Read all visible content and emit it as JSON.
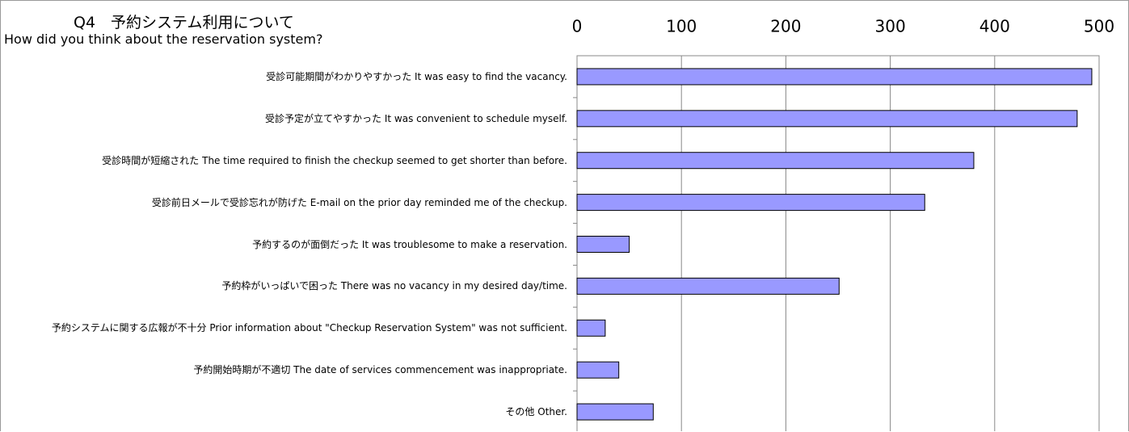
{
  "chart_data": {
    "type": "barh",
    "title": "Q4　予約システム利用について",
    "subtitle": "How did you think about the reservation system?",
    "categories": [
      "受診可能期間がわかりやすかった It was easy to find the vacancy.",
      "受診予定が立てやすかった It was convenient to schedule myself.",
      "受診時間が短縮された The time required to finish the checkup seemed to get shorter than before.",
      "受診前日メールで受診忘れが防げた E-mail on the prior day reminded me of the checkup.",
      "予約するのが面倒だった It was troublesome to make a reservation.",
      "予約枠がいっぱいで困った There was no vacancy in my desired day/time.",
      "予約システムに関する広報が不十分 Prior information about \"Checkup Reservation System\" was not sufficient.",
      "予約開始時期が不適切  The date of services commencement was inappropriate.",
      "その他 Other."
    ],
    "values": [
      493,
      479,
      380,
      333,
      50,
      251,
      27,
      40,
      73
    ],
    "color": "#9999ff",
    "xlim": [
      0,
      500
    ],
    "xticks": [
      0,
      100,
      200,
      300,
      400,
      500
    ],
    "grid": true
  }
}
